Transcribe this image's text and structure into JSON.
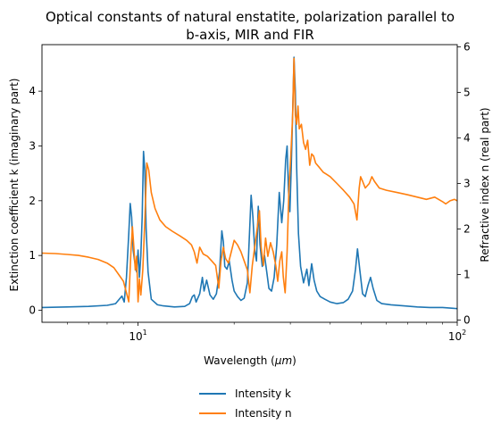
{
  "chart_data": {
    "type": "line",
    "title_line1": "Optical constants of natural enstatite, polarization parallel to",
    "title_line2": "b-axis, MIR and FIR",
    "xlabel": "Wavelength ($\\mu m$)",
    "xlabel_prefix": "Wavelength (",
    "xlabel_mu": "μm",
    "xlabel_suffix": ")",
    "ylabel_left": "Extinction coefficient k (imaginary part)",
    "ylabel_right": "Refractive index n (real part)",
    "x_scale": "log",
    "xlim": [
      5,
      100
    ],
    "ylim_left": [
      -0.22,
      4.85
    ],
    "ylim_right": [
      -0.05,
      6.05
    ],
    "x_ticks": [
      {
        "value": 10,
        "base": "10",
        "exp": "1"
      },
      {
        "value": 100,
        "base": "10",
        "exp": "2"
      }
    ],
    "y_ticks_left": [
      "0",
      "1",
      "2",
      "3",
      "4"
    ],
    "y_ticks_right": [
      "0",
      "1",
      "2",
      "3",
      "4",
      "5",
      "6"
    ],
    "grid": false,
    "legend_position": "below",
    "series": [
      {
        "name": "Intensity k",
        "axis": "left",
        "color": "#1f77b4",
        "points": [
          [
            5.0,
            0.05
          ],
          [
            6.0,
            0.06
          ],
          [
            7.0,
            0.07
          ],
          [
            8.0,
            0.09
          ],
          [
            8.5,
            0.12
          ],
          [
            8.9,
            0.26
          ],
          [
            9.05,
            0.15
          ],
          [
            9.2,
            0.6
          ],
          [
            9.35,
            1.4
          ],
          [
            9.45,
            1.95
          ],
          [
            9.55,
            1.7
          ],
          [
            9.65,
            1.1
          ],
          [
            9.75,
            0.9
          ],
          [
            9.9,
            0.7
          ],
          [
            10.0,
            1.1
          ],
          [
            10.1,
            0.6
          ],
          [
            10.2,
            1.0
          ],
          [
            10.3,
            1.7
          ],
          [
            10.4,
            2.9
          ],
          [
            10.5,
            2.55
          ],
          [
            10.6,
            1.5
          ],
          [
            10.75,
            0.7
          ],
          [
            11.0,
            0.2
          ],
          [
            11.5,
            0.1
          ],
          [
            12.0,
            0.08
          ],
          [
            13.0,
            0.06
          ],
          [
            14.0,
            0.07
          ],
          [
            14.5,
            0.12
          ],
          [
            14.8,
            0.25
          ],
          [
            15.0,
            0.28
          ],
          [
            15.2,
            0.15
          ],
          [
            15.6,
            0.3
          ],
          [
            15.9,
            0.6
          ],
          [
            16.1,
            0.35
          ],
          [
            16.4,
            0.55
          ],
          [
            16.8,
            0.28
          ],
          [
            17.2,
            0.2
          ],
          [
            17.6,
            0.3
          ],
          [
            18.0,
            0.7
          ],
          [
            18.3,
            1.45
          ],
          [
            18.5,
            1.25
          ],
          [
            18.7,
            0.8
          ],
          [
            19.0,
            0.75
          ],
          [
            19.3,
            0.9
          ],
          [
            19.7,
            0.55
          ],
          [
            20.0,
            0.35
          ],
          [
            20.5,
            0.25
          ],
          [
            21.0,
            0.18
          ],
          [
            21.5,
            0.22
          ],
          [
            22.0,
            0.5
          ],
          [
            22.3,
            1.3
          ],
          [
            22.6,
            2.1
          ],
          [
            22.9,
            1.7
          ],
          [
            23.2,
            1.1
          ],
          [
            23.5,
            0.9
          ],
          [
            23.8,
            1.9
          ],
          [
            24.1,
            1.2
          ],
          [
            24.5,
            0.8
          ],
          [
            24.9,
            1.0
          ],
          [
            25.3,
            0.7
          ],
          [
            25.7,
            0.4
          ],
          [
            26.2,
            0.35
          ],
          [
            26.7,
            0.6
          ],
          [
            27.2,
            1.2
          ],
          [
            27.7,
            2.15
          ],
          [
            28.2,
            1.6
          ],
          [
            28.6,
            2.0
          ],
          [
            29.0,
            2.75
          ],
          [
            29.3,
            3.0
          ],
          [
            29.6,
            2.2
          ],
          [
            29.9,
            1.8
          ],
          [
            30.2,
            2.6
          ],
          [
            30.5,
            3.6
          ],
          [
            30.8,
            4.62
          ],
          [
            31.1,
            4.0
          ],
          [
            31.4,
            2.6
          ],
          [
            31.8,
            1.4
          ],
          [
            32.3,
            0.8
          ],
          [
            33.0,
            0.5
          ],
          [
            33.8,
            0.75
          ],
          [
            34.3,
            0.45
          ],
          [
            35.0,
            0.85
          ],
          [
            35.6,
            0.55
          ],
          [
            36.3,
            0.35
          ],
          [
            37.2,
            0.25
          ],
          [
            38.5,
            0.2
          ],
          [
            40.0,
            0.15
          ],
          [
            42.0,
            0.12
          ],
          [
            44.0,
            0.14
          ],
          [
            45.5,
            0.2
          ],
          [
            47.0,
            0.35
          ],
          [
            48.0,
            0.75
          ],
          [
            48.7,
            1.12
          ],
          [
            49.5,
            0.75
          ],
          [
            50.5,
            0.3
          ],
          [
            51.5,
            0.25
          ],
          [
            52.5,
            0.45
          ],
          [
            53.5,
            0.6
          ],
          [
            54.5,
            0.4
          ],
          [
            56.0,
            0.18
          ],
          [
            58.0,
            0.12
          ],
          [
            62.0,
            0.1
          ],
          [
            68.0,
            0.08
          ],
          [
            75.0,
            0.06
          ],
          [
            82.0,
            0.05
          ],
          [
            90.0,
            0.05
          ],
          [
            100.0,
            0.03
          ]
        ]
      },
      {
        "name": "Intensity n",
        "axis": "right",
        "color": "#ff7f0e",
        "points": [
          [
            5.0,
            1.47
          ],
          [
            5.5,
            1.46
          ],
          [
            6.0,
            1.44
          ],
          [
            6.5,
            1.42
          ],
          [
            7.0,
            1.38
          ],
          [
            7.5,
            1.33
          ],
          [
            8.0,
            1.25
          ],
          [
            8.4,
            1.15
          ],
          [
            8.8,
            0.95
          ],
          [
            9.0,
            0.85
          ],
          [
            9.2,
            0.6
          ],
          [
            9.35,
            0.4
          ],
          [
            9.5,
            1.5
          ],
          [
            9.6,
            2.05
          ],
          [
            9.7,
            1.6
          ],
          [
            9.8,
            1.1
          ],
          [
            9.9,
            1.4
          ],
          [
            10.0,
            0.4
          ],
          [
            10.1,
            0.9
          ],
          [
            10.2,
            0.55
          ],
          [
            10.35,
            1.1
          ],
          [
            10.5,
            2.2
          ],
          [
            10.65,
            3.45
          ],
          [
            10.8,
            3.3
          ],
          [
            11.0,
            2.8
          ],
          [
            11.3,
            2.45
          ],
          [
            11.7,
            2.2
          ],
          [
            12.2,
            2.05
          ],
          [
            12.8,
            1.95
          ],
          [
            13.5,
            1.85
          ],
          [
            14.2,
            1.75
          ],
          [
            14.7,
            1.65
          ],
          [
            15.0,
            1.5
          ],
          [
            15.3,
            1.25
          ],
          [
            15.6,
            1.6
          ],
          [
            16.0,
            1.45
          ],
          [
            16.5,
            1.4
          ],
          [
            17.0,
            1.3
          ],
          [
            17.5,
            1.2
          ],
          [
            17.9,
            0.7
          ],
          [
            18.2,
            1.3
          ],
          [
            18.5,
            1.6
          ],
          [
            18.8,
            1.35
          ],
          [
            19.2,
            1.25
          ],
          [
            19.6,
            1.5
          ],
          [
            20.0,
            1.75
          ],
          [
            20.5,
            1.65
          ],
          [
            21.0,
            1.5
          ],
          [
            21.5,
            1.3
          ],
          [
            22.0,
            1.1
          ],
          [
            22.4,
            0.6
          ],
          [
            22.8,
            1.2
          ],
          [
            23.2,
            1.6
          ],
          [
            23.6,
            2.0
          ],
          [
            24.0,
            2.4
          ],
          [
            24.3,
            1.6
          ],
          [
            24.7,
            1.2
          ],
          [
            25.1,
            1.8
          ],
          [
            25.5,
            1.4
          ],
          [
            26.0,
            1.7
          ],
          [
            26.5,
            1.5
          ],
          [
            27.0,
            1.2
          ],
          [
            27.4,
            0.85
          ],
          [
            27.8,
            1.3
          ],
          [
            28.2,
            1.5
          ],
          [
            28.5,
            0.95
          ],
          [
            28.9,
            0.6
          ],
          [
            29.3,
            1.5
          ],
          [
            29.7,
            2.9
          ],
          [
            30.1,
            3.6
          ],
          [
            30.5,
            4.5
          ],
          [
            30.8,
            5.75
          ],
          [
            31.1,
            4.5
          ],
          [
            31.4,
            4.3
          ],
          [
            31.7,
            4.7
          ],
          [
            32.0,
            4.2
          ],
          [
            32.5,
            4.3
          ],
          [
            33.0,
            3.9
          ],
          [
            33.5,
            3.75
          ],
          [
            34.0,
            3.95
          ],
          [
            34.5,
            3.4
          ],
          [
            35.0,
            3.65
          ],
          [
            35.5,
            3.6
          ],
          [
            36.0,
            3.45
          ],
          [
            37.0,
            3.35
          ],
          [
            38.0,
            3.25
          ],
          [
            39.0,
            3.2
          ],
          [
            40.0,
            3.15
          ],
          [
            42.0,
            3.0
          ],
          [
            44.0,
            2.85
          ],
          [
            46.0,
            2.7
          ],
          [
            47.5,
            2.55
          ],
          [
            48.5,
            2.2
          ],
          [
            49.3,
            2.9
          ],
          [
            49.8,
            3.15
          ],
          [
            50.5,
            3.05
          ],
          [
            51.5,
            2.9
          ],
          [
            53.0,
            3.0
          ],
          [
            54.0,
            3.15
          ],
          [
            55.0,
            3.05
          ],
          [
            57.0,
            2.9
          ],
          [
            60.0,
            2.85
          ],
          [
            65.0,
            2.8
          ],
          [
            70.0,
            2.75
          ],
          [
            75.0,
            2.7
          ],
          [
            80.0,
            2.65
          ],
          [
            85.0,
            2.7
          ],
          [
            90.0,
            2.6
          ],
          [
            92.0,
            2.55
          ],
          [
            95.0,
            2.62
          ],
          [
            98.0,
            2.65
          ],
          [
            100.0,
            2.62
          ]
        ]
      }
    ]
  }
}
